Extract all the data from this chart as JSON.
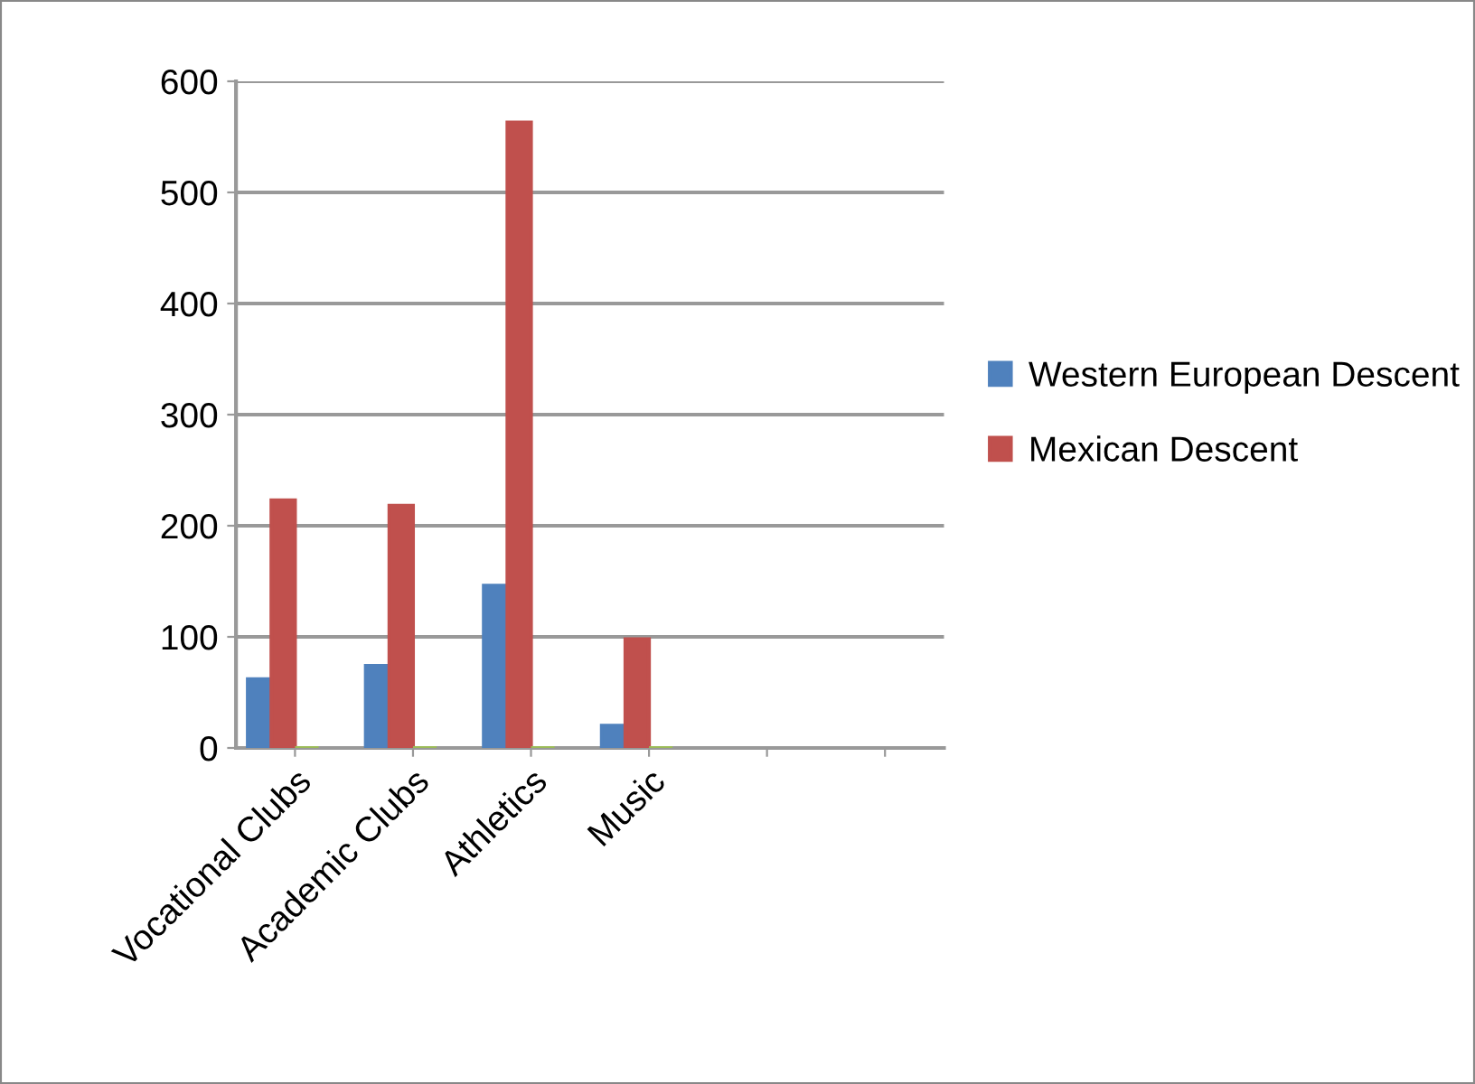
{
  "chart_data": {
    "type": "bar",
    "categories": [
      "Vocational Clubs",
      "Academic Clubs",
      "Athletics",
      "Music",
      null,
      null
    ],
    "series": [
      {
        "name": "Western European Descent",
        "color": "#4f81bd",
        "values": [
          62,
          74,
          146,
          20,
          null,
          null
        ]
      },
      {
        "name": "Mexican Descent",
        "color": "#c0504d",
        "values": [
          223,
          218,
          563,
          98,
          null,
          null
        ]
      },
      {
        "color": "#9bbb59",
        "values": [
          0,
          0,
          0,
          0,
          null,
          null
        ]
      }
    ],
    "ylim": [
      0,
      600
    ],
    "yticks": [
      0,
      100,
      200,
      300,
      400,
      500,
      600
    ],
    "grid": "y",
    "legend": "right"
  }
}
